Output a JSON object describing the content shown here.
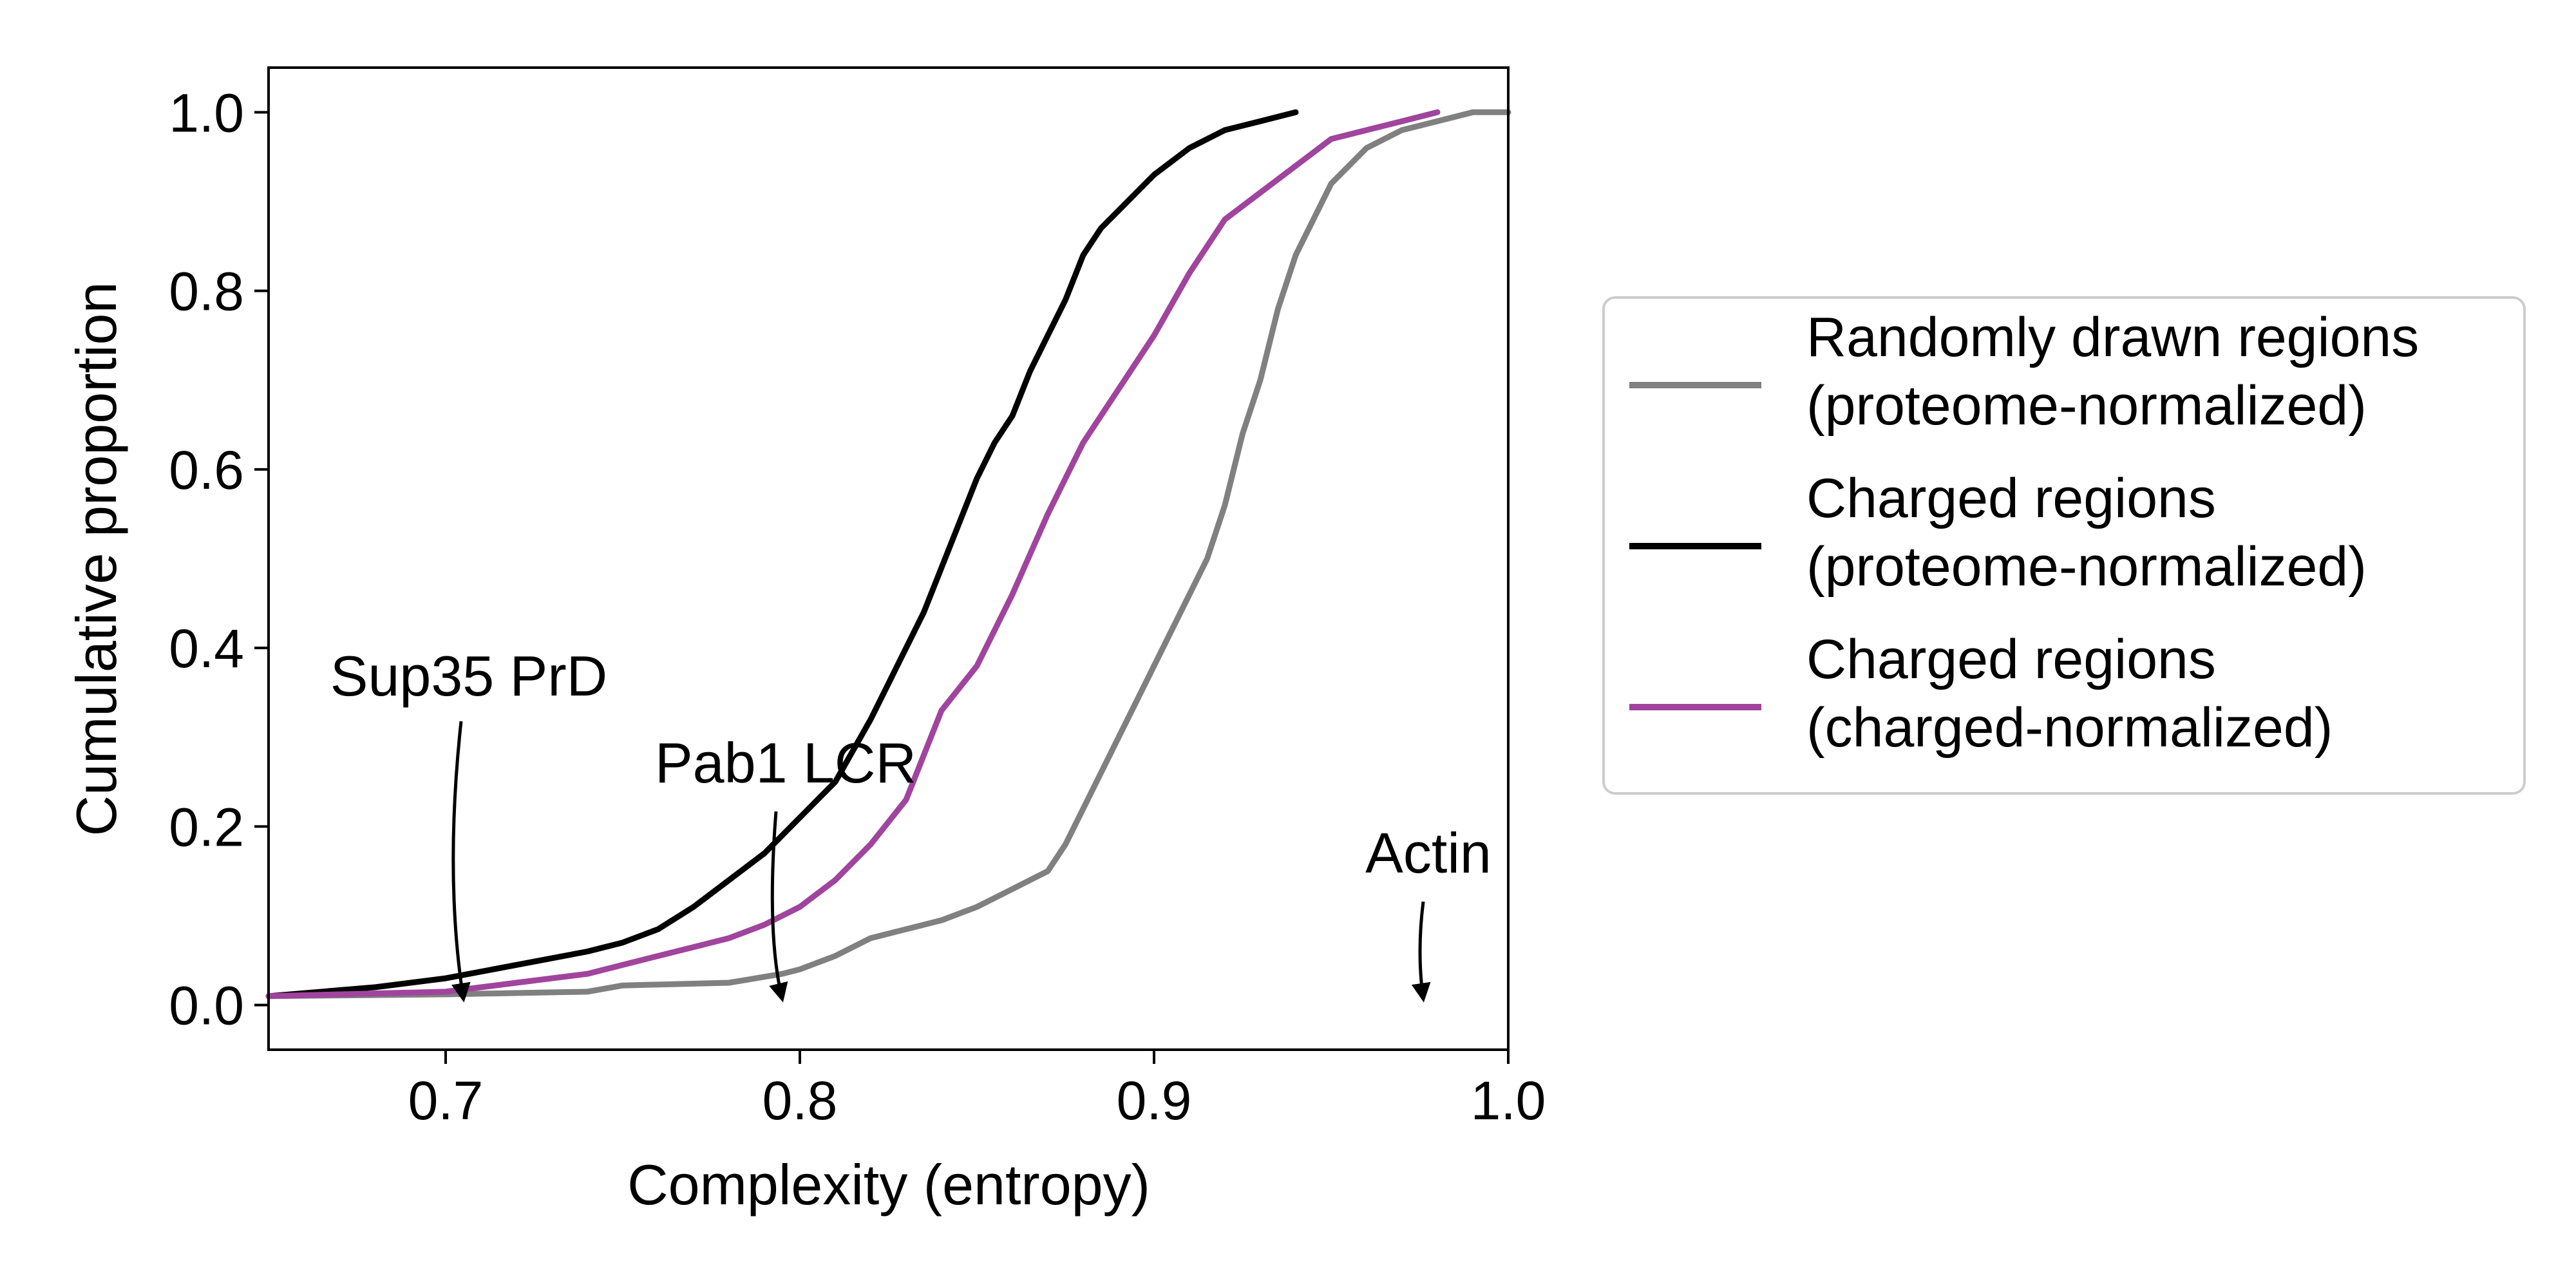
{
  "chart_data": {
    "type": "line",
    "title": "",
    "xlabel": "Complexity (entropy)",
    "ylabel": "Cumulative proportion",
    "xlim": [
      0.65,
      1.0
    ],
    "ylim": [
      -0.05,
      1.05
    ],
    "xticks": [
      0.7,
      0.8,
      0.9,
      1.0
    ],
    "xtick_labels": [
      "0.7",
      "0.8",
      "0.9",
      "1.0"
    ],
    "yticks": [
      0.0,
      0.2,
      0.4,
      0.6,
      0.8,
      1.0
    ],
    "ytick_labels": [
      "0.0",
      "0.2",
      "0.4",
      "0.6",
      "0.8",
      "1.0"
    ],
    "grid": false,
    "legend_position": "right, outside plot",
    "series": [
      {
        "name": "Randomly drawn regions\n(proteome-normalized)",
        "color": "#808080",
        "x": [
          0.65,
          0.7,
          0.74,
          0.75,
          0.78,
          0.795,
          0.8,
          0.81,
          0.82,
          0.84,
          0.85,
          0.86,
          0.87,
          0.875,
          0.88,
          0.89,
          0.9,
          0.905,
          0.91,
          0.915,
          0.92,
          0.925,
          0.93,
          0.935,
          0.94,
          0.945,
          0.95,
          0.96,
          0.97,
          0.98,
          0.99,
          1.0
        ],
        "y": [
          0.01,
          0.012,
          0.015,
          0.022,
          0.025,
          0.035,
          0.04,
          0.055,
          0.075,
          0.095,
          0.11,
          0.13,
          0.15,
          0.18,
          0.22,
          0.3,
          0.38,
          0.42,
          0.46,
          0.5,
          0.56,
          0.64,
          0.7,
          0.78,
          0.84,
          0.88,
          0.92,
          0.96,
          0.98,
          0.99,
          1.0,
          1.0
        ]
      },
      {
        "name": "Charged regions\n(proteome-normalized)",
        "color": "#000000",
        "x": [
          0.65,
          0.68,
          0.7,
          0.72,
          0.74,
          0.75,
          0.76,
          0.77,
          0.78,
          0.79,
          0.8,
          0.81,
          0.82,
          0.825,
          0.83,
          0.835,
          0.84,
          0.845,
          0.85,
          0.855,
          0.86,
          0.865,
          0.87,
          0.875,
          0.88,
          0.885,
          0.89,
          0.9,
          0.91,
          0.92,
          0.93,
          0.94
        ],
        "y": [
          0.01,
          0.02,
          0.03,
          0.045,
          0.06,
          0.07,
          0.085,
          0.11,
          0.14,
          0.17,
          0.21,
          0.25,
          0.32,
          0.36,
          0.4,
          0.44,
          0.49,
          0.54,
          0.59,
          0.63,
          0.66,
          0.71,
          0.75,
          0.79,
          0.84,
          0.87,
          0.89,
          0.93,
          0.96,
          0.98,
          0.99,
          1.0
        ]
      },
      {
        "name": "Charged regions\n(charged-normalized)",
        "color": "#a0449e",
        "x": [
          0.65,
          0.7,
          0.72,
          0.74,
          0.75,
          0.76,
          0.77,
          0.78,
          0.79,
          0.8,
          0.81,
          0.82,
          0.83,
          0.84,
          0.85,
          0.86,
          0.87,
          0.88,
          0.89,
          0.9,
          0.91,
          0.92,
          0.93,
          0.94,
          0.95,
          0.96,
          0.97,
          0.98
        ],
        "y": [
          0.01,
          0.015,
          0.025,
          0.035,
          0.045,
          0.055,
          0.065,
          0.075,
          0.09,
          0.11,
          0.14,
          0.18,
          0.23,
          0.33,
          0.38,
          0.46,
          0.55,
          0.63,
          0.69,
          0.75,
          0.82,
          0.88,
          0.91,
          0.94,
          0.97,
          0.98,
          0.99,
          1.0
        ]
      }
    ],
    "annotations": [
      {
        "text": "Sup35 PrD",
        "x": 0.705,
        "y": 0.0
      },
      {
        "text": "Pab1 LCR",
        "x": 0.795,
        "y": 0.0
      },
      {
        "text": "Actin",
        "x": 0.976,
        "y": 0.0
      }
    ]
  }
}
